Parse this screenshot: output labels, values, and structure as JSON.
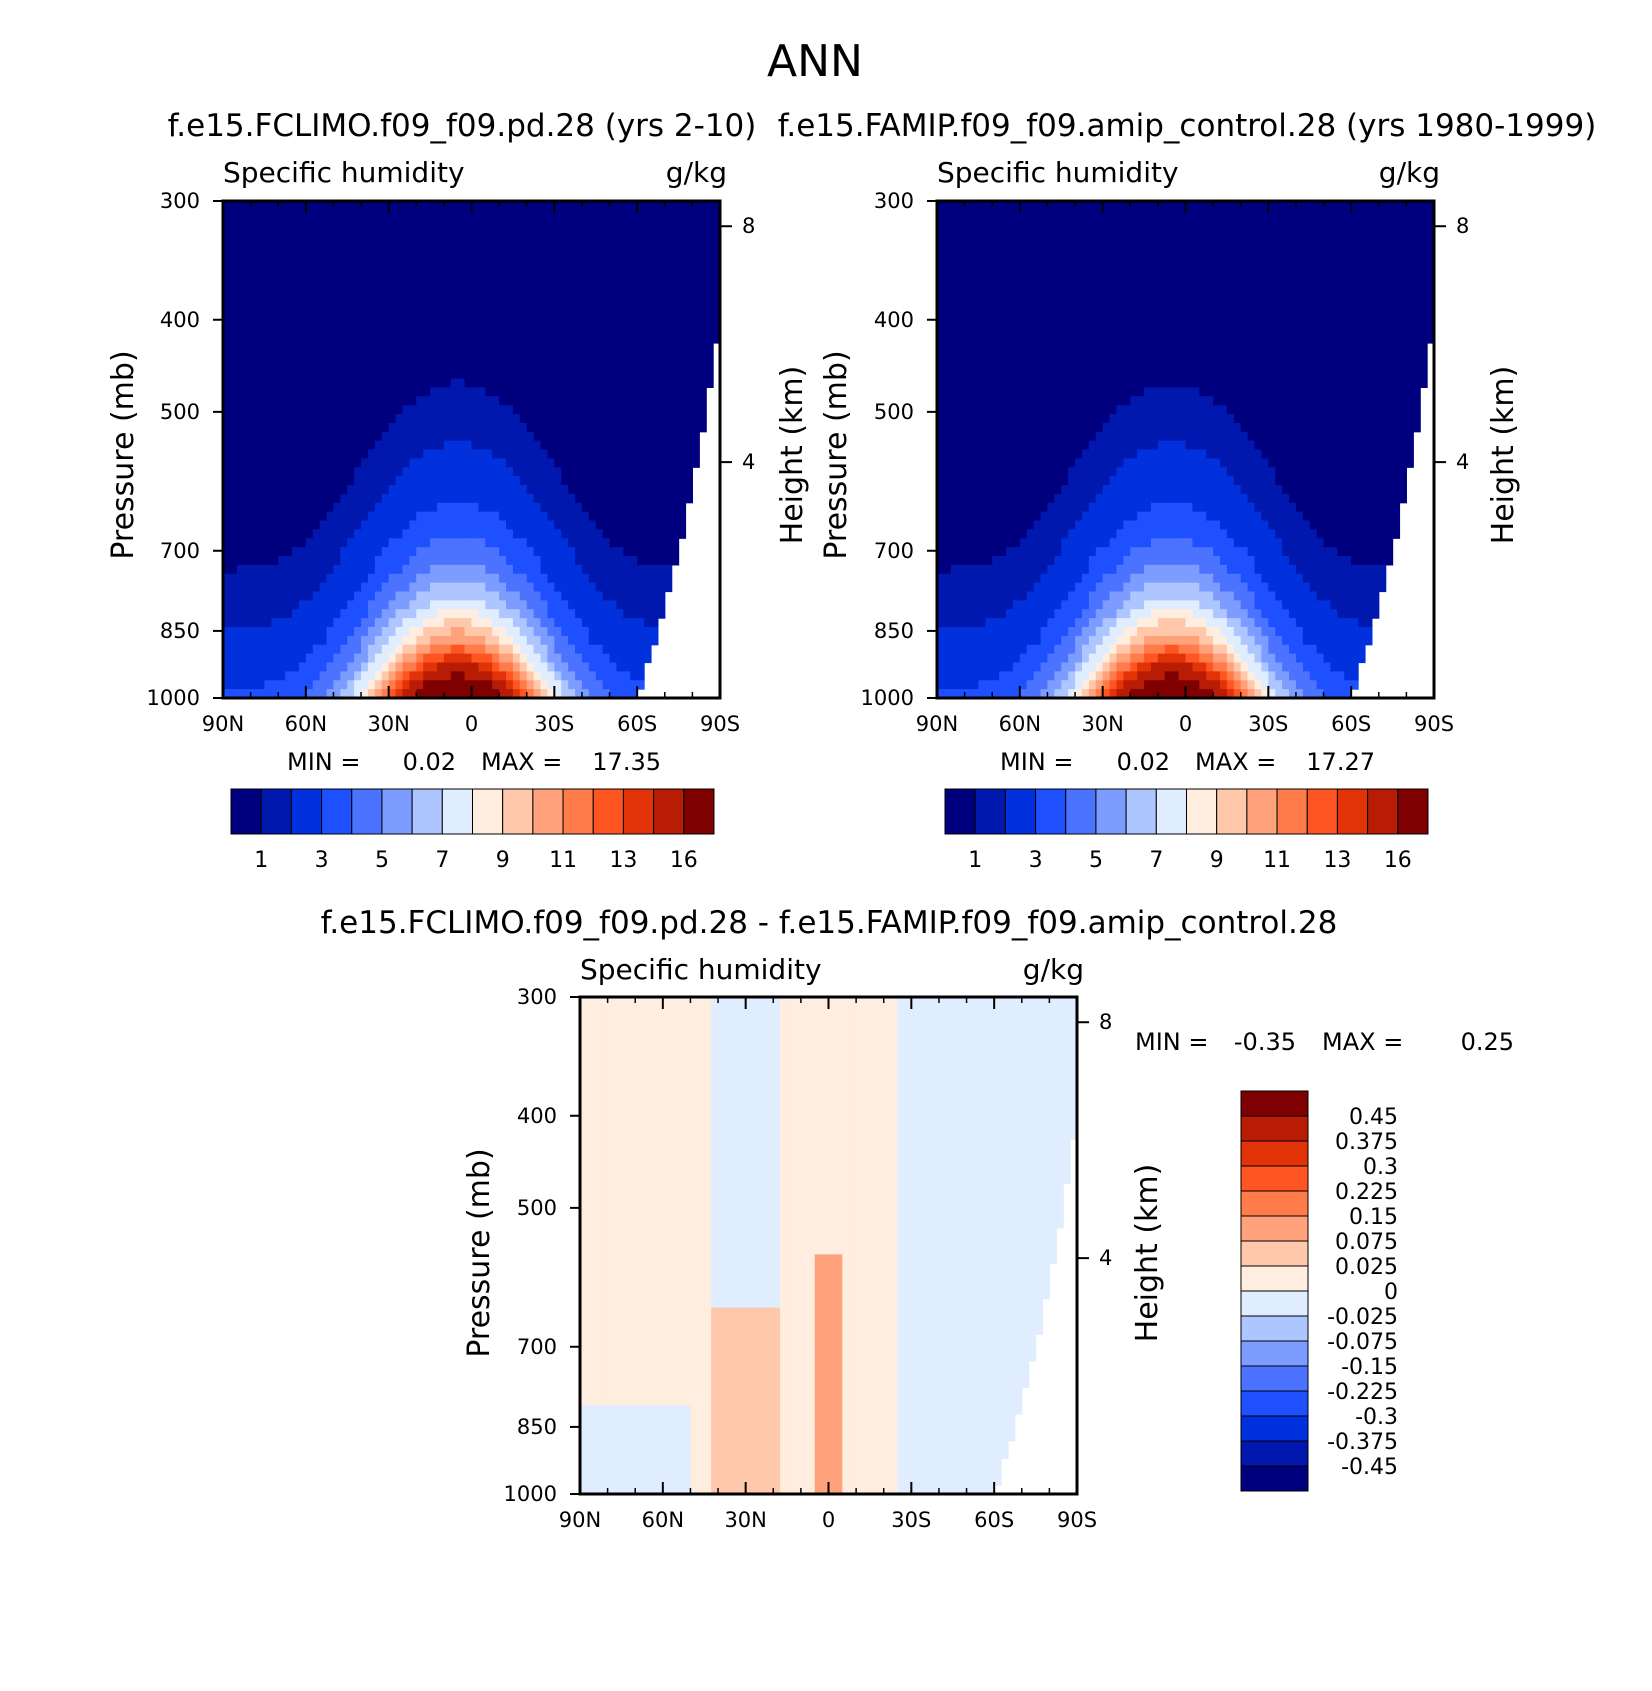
{
  "figure": {
    "title": "ANN",
    "colors": {
      "sequential": [
        "#00007f",
        "#0018ae",
        "#0031dd",
        "#1e50ff",
        "#4b73ff",
        "#7c9dff",
        "#adc6ff",
        "#dfedff",
        "#ffede0",
        "#ffc8aa",
        "#ffa27c",
        "#ff7c4a",
        "#ff5522",
        "#e23208",
        "#b81c04",
        "#7f0000"
      ],
      "diverging": [
        "#00007f",
        "#0018ae",
        "#0031dd",
        "#1e50ff",
        "#4b73ff",
        "#7c9dff",
        "#adc6ff",
        "#dfedff",
        "#ffede0",
        "#ffc8aa",
        "#ffa27c",
        "#ff7c4a",
        "#ff5522",
        "#e23208",
        "#b81c04",
        "#7f0000"
      ]
    }
  },
  "chart_data": [
    {
      "type": "heatmap",
      "title": "f.e15.FCLIMO.f09_f09.pd.28 (yrs 2-10)",
      "subtitle_left": "Specific humidity",
      "subtitle_right": "g/kg",
      "ylabel": "Pressure (mb)",
      "ylabel_right": "Height (km)",
      "x_ticks": [
        "90N",
        "60N",
        "30N",
        "0",
        "30S",
        "60S",
        "90S"
      ],
      "x_values": [
        90,
        60,
        30,
        0,
        -30,
        -60,
        -90
      ],
      "y_ticks": [
        "300",
        "400",
        "500",
        "700",
        "850",
        "1000"
      ],
      "y_values": [
        300,
        400,
        500,
        700,
        850,
        1000
      ],
      "height_ticks": [
        "8",
        "4"
      ],
      "height_values": [
        8,
        4
      ],
      "ylim": [
        300,
        1000
      ],
      "xlim": [
        90,
        -90
      ],
      "min_label": "MIN =",
      "min_value": "0.02",
      "max_label": "MAX =",
      "max_value": "17.35",
      "colorbar_labels": [
        "1",
        "3",
        "5",
        "7",
        "9",
        "11",
        "13",
        "16"
      ],
      "field": {
        "peak": 17.35,
        "peak_lat": 5,
        "floor": 0.02
      }
    },
    {
      "type": "heatmap",
      "title": "f.e15.FAMIP.f09_f09.amip_control.28 (yrs 1980-1999)",
      "subtitle_left": "Specific humidity",
      "subtitle_right": "g/kg",
      "ylabel": "Pressure (mb)",
      "ylabel_right": "Height (km)",
      "x_ticks": [
        "90N",
        "60N",
        "30N",
        "0",
        "30S",
        "60S",
        "90S"
      ],
      "x_values": [
        90,
        60,
        30,
        0,
        -30,
        -60,
        -90
      ],
      "y_ticks": [
        "300",
        "400",
        "500",
        "700",
        "850",
        "1000"
      ],
      "y_values": [
        300,
        400,
        500,
        700,
        850,
        1000
      ],
      "height_ticks": [
        "8",
        "4"
      ],
      "height_values": [
        8,
        4
      ],
      "ylim": [
        300,
        1000
      ],
      "xlim": [
        90,
        -90
      ],
      "min_label": "MIN =",
      "min_value": "0.02",
      "max_label": "MAX =",
      "max_value": "17.27",
      "colorbar_labels": [
        "1",
        "3",
        "5",
        "7",
        "9",
        "11",
        "13",
        "16"
      ],
      "field": {
        "peak": 17.27,
        "peak_lat": 5,
        "floor": 0.02
      }
    },
    {
      "type": "heatmap",
      "title": "f.e15.FCLIMO.f09_f09.pd.28 - f.e15.FAMIP.f09_f09.amip_control.28",
      "subtitle_left": "Specific humidity",
      "subtitle_right": "g/kg",
      "ylabel": "Pressure (mb)",
      "ylabel_right": "Height (km)",
      "x_ticks": [
        "90N",
        "60N",
        "30N",
        "0",
        "30S",
        "60S",
        "90S"
      ],
      "x_values": [
        90,
        60,
        30,
        0,
        -30,
        -60,
        -90
      ],
      "y_ticks": [
        "300",
        "400",
        "500",
        "700",
        "850",
        "1000"
      ],
      "y_values": [
        300,
        400,
        500,
        700,
        850,
        1000
      ],
      "height_ticks": [
        "8",
        "4"
      ],
      "height_values": [
        8,
        4
      ],
      "ylim": [
        300,
        1000
      ],
      "xlim": [
        90,
        -90
      ],
      "min_label": "MIN =",
      "min_value": "-0.35",
      "max_label": "MAX =",
      "max_value": "0.25",
      "colorbar_labels": [
        "0.45",
        "0.375",
        "0.3",
        "0.225",
        "0.15",
        "0.075",
        "0.025",
        "0",
        "-0.025",
        "-0.075",
        "-0.15",
        "-0.225",
        "-0.3",
        "-0.375",
        "-0.45"
      ],
      "colorbar_levels": [
        0.45,
        0.375,
        0.3,
        0.225,
        0.15,
        0.075,
        0.025,
        0,
        -0.025,
        -0.075,
        -0.15,
        -0.225,
        -0.3,
        -0.375,
        -0.45
      ],
      "bands": [
        {
          "lat_from": 90,
          "lat_to": 42,
          "value": 0.01
        },
        {
          "lat_from": 42,
          "lat_to": 18,
          "value": -0.01
        },
        {
          "lat_from": 18,
          "lat_to": -25,
          "value": 0.02
        },
        {
          "lat_from": -25,
          "lat_to": -90,
          "value": -0.01
        }
      ]
    }
  ]
}
